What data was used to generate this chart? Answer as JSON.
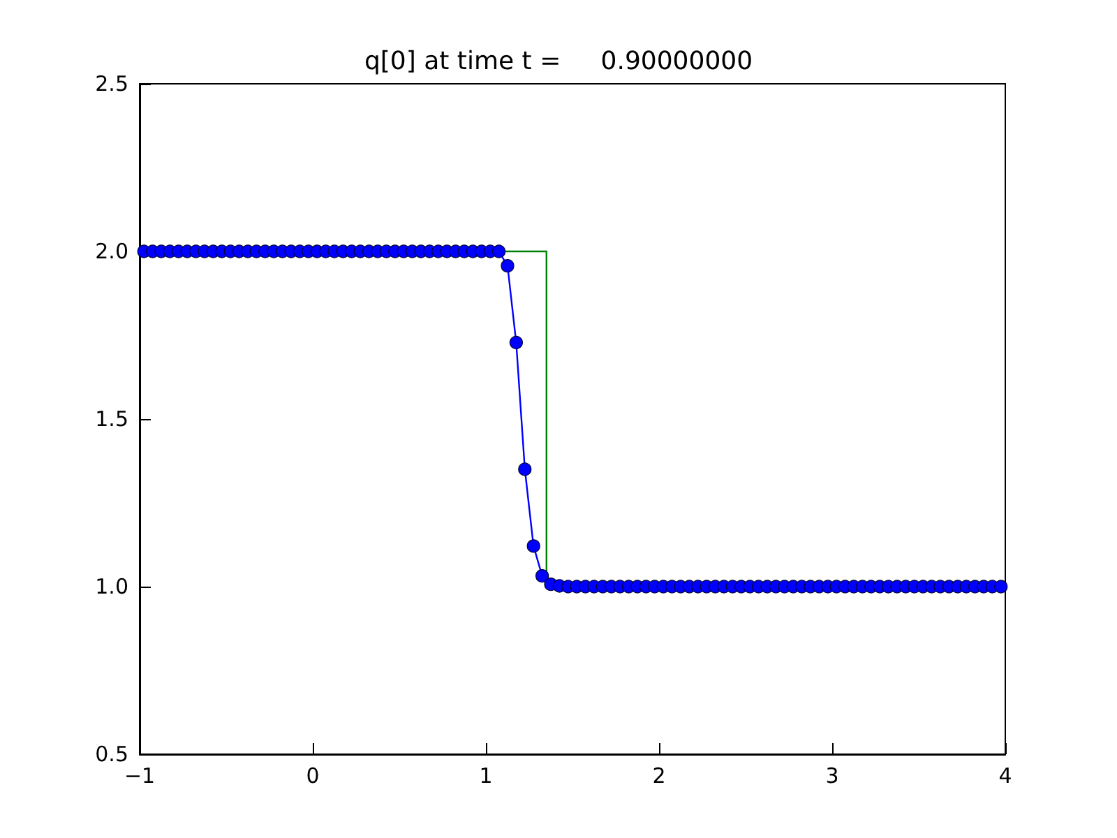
{
  "chart_data": {
    "type": "line",
    "title": "q[0] at time t =     0.90000000",
    "xlim": [
      -1,
      4
    ],
    "xticks": [
      {
        "value": -1,
        "label": "−1"
      },
      0,
      1,
      2,
      3,
      4
    ],
    "ylim": [
      0.5,
      2.5
    ],
    "yticks": [
      0.5,
      {
        "value": 1,
        "label": "1.0"
      },
      1.5,
      {
        "value": 2,
        "label": "2.0"
      },
      2.5
    ],
    "line_style": "solid",
    "series": [
      {
        "color": "#0000ff",
        "marker": "circle",
        "x": [
          -0.975,
          -0.925,
          -0.875,
          -0.825,
          -0.775,
          -0.725,
          -0.675,
          -0.625,
          -0.575,
          -0.525,
          -0.475,
          -0.425,
          -0.375,
          -0.325,
          -0.275,
          -0.225,
          -0.175,
          -0.125,
          -0.075,
          -0.025,
          0.025,
          0.075,
          0.125,
          0.175,
          0.225,
          0.275,
          0.325,
          0.375,
          0.425,
          0.475,
          0.525,
          0.575,
          0.625,
          0.675,
          0.725,
          0.775,
          0.825,
          0.875,
          0.925,
          0.975,
          1.025,
          1.075,
          1.125,
          1.175,
          1.225,
          1.275,
          1.325,
          1.375,
          1.425,
          1.475,
          1.525,
          1.575,
          1.625,
          1.675,
          1.725,
          1.775,
          1.825,
          1.875,
          1.925,
          1.975,
          2.025,
          2.075,
          2.125,
          2.175,
          2.225,
          2.275,
          2.325,
          2.375,
          2.425,
          2.475,
          2.525,
          2.575,
          2.625,
          2.675,
          2.725,
          2.775,
          2.825,
          2.875,
          2.925,
          2.975,
          3.025,
          3.075,
          3.125,
          3.175,
          3.225,
          3.275,
          3.325,
          3.375,
          3.425,
          3.475,
          3.525,
          3.575,
          3.625,
          3.675,
          3.725,
          3.775,
          3.825,
          3.875,
          3.925,
          3.975
        ],
        "values": [
          2,
          2,
          2,
          2,
          2,
          2,
          2,
          2,
          2,
          2,
          2,
          2,
          2,
          2,
          2,
          2,
          2,
          2,
          2,
          2,
          2,
          2,
          2,
          2,
          2,
          2,
          2,
          2,
          2,
          2,
          2,
          2,
          2,
          2,
          2,
          2,
          2,
          2,
          2,
          2,
          2,
          2,
          1.957,
          1.728,
          1.35,
          1.121,
          1.032,
          1.007,
          1.002,
          1,
          1,
          1,
          1,
          1,
          1,
          1,
          1,
          1,
          1,
          1,
          1,
          1,
          1,
          1,
          1,
          1,
          1,
          1,
          1,
          1,
          1,
          1,
          1,
          1,
          1,
          1,
          1,
          1,
          1,
          1,
          1,
          1,
          1,
          1,
          1,
          1,
          1,
          1,
          1,
          1,
          1,
          1,
          1,
          1,
          1,
          1,
          1,
          1,
          1,
          1
        ]
      },
      {
        "color": "#008000",
        "marker": "none",
        "x": [
          -1,
          1.35,
          1.35,
          4
        ],
        "values": [
          2,
          2,
          1,
          1
        ]
      }
    ]
  }
}
